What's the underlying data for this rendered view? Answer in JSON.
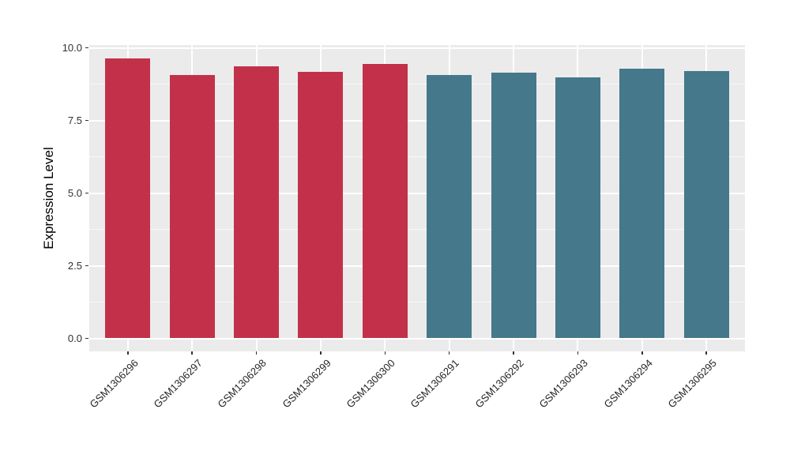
{
  "chart_data": {
    "type": "bar",
    "title": "",
    "xlabel": "",
    "ylabel": "Expression Level",
    "ylim": [
      0,
      10
    ],
    "yticks": [
      0,
      2.5,
      5,
      7.5,
      10
    ],
    "ytick_labels": [
      "0.0",
      "2.5",
      "5.0",
      "7.5",
      "10.0"
    ],
    "yticks_minor": [
      1.25,
      3.75,
      6.25,
      8.75
    ],
    "categories": [
      "GSM1306296",
      "GSM1306297",
      "GSM1306298",
      "GSM1306299",
      "GSM1306300",
      "GSM1306291",
      "GSM1306292",
      "GSM1306293",
      "GSM1306294",
      "GSM1306295"
    ],
    "values": [
      9.62,
      9.05,
      9.37,
      9.18,
      9.43,
      9.06,
      9.14,
      8.99,
      9.27,
      9.21
    ],
    "bar_groups": [
      "group1",
      "group1",
      "group1",
      "group1",
      "group1",
      "group2",
      "group2",
      "group2",
      "group2",
      "group2"
    ],
    "group_colors": {
      "group1": "#C23149",
      "group2": "#44788A"
    },
    "legend_position": "none",
    "grid": true,
    "panel_background": "#EBEBEB",
    "gridline_color": "#FFFFFF",
    "bar_width_fraction": 0.7,
    "x_label_angle_deg": 45
  }
}
